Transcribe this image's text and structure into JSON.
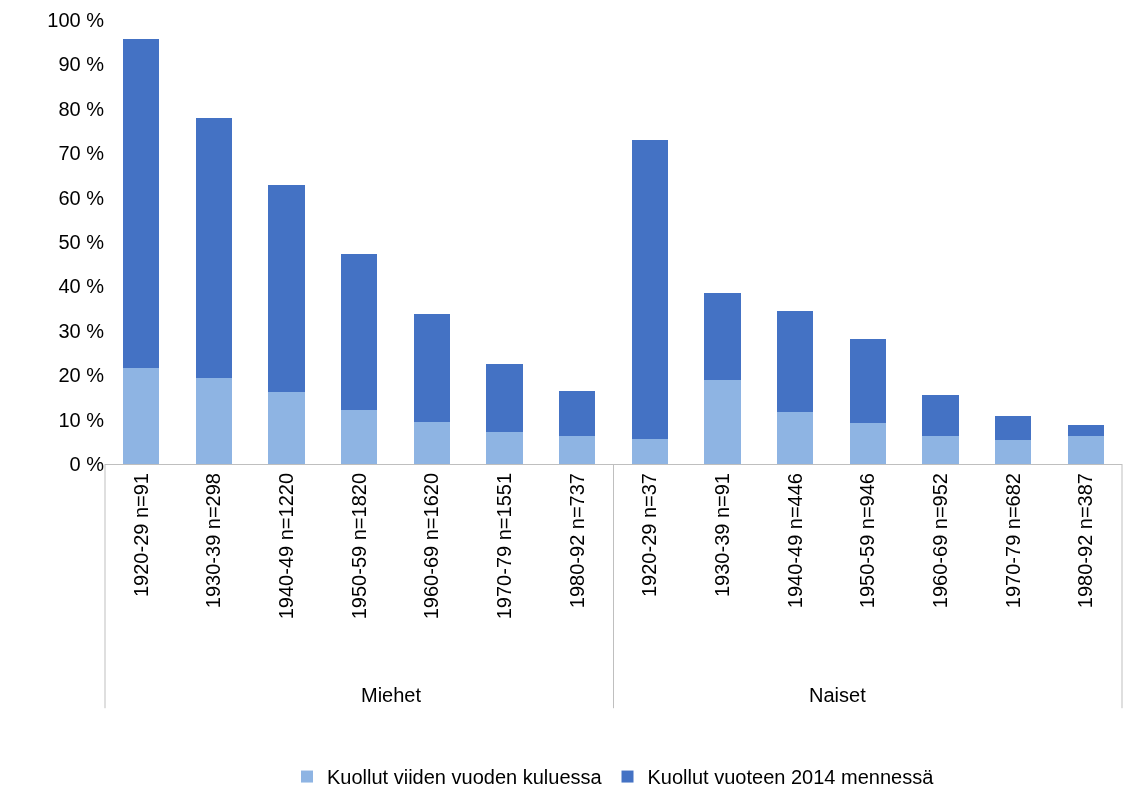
{
  "chart_data": {
    "type": "bar",
    "stacked": true,
    "categories": [
      "1920-29 n=91",
      "1930-39 n=298",
      "1940-49 n=1220",
      "1950-59 n=1820",
      "1960-69 n=1620",
      "1970-79 n=1551",
      "1980-92 n=737",
      "1920-29 n=37",
      "1930-39 n=91",
      "1940-49 n=446",
      "1950-59 n=946",
      "1960-69 n=952",
      "1970-79 n=682",
      "1980-92 n=387"
    ],
    "series": [
      {
        "name": "Kuollut viiden vuoden kuluessa",
        "color": "#8eb4e3",
        "values": [
          21.7,
          19.3,
          16.3,
          12.2,
          9.4,
          7.1,
          6.2,
          5.6,
          18.9,
          11.8,
          9.2,
          6.2,
          5.4,
          6.4
        ]
      },
      {
        "name": "Kuollut vuoteen 2014 mennessä",
        "color": "#4472c4",
        "values": [
          74.0,
          58.6,
          46.6,
          35.0,
          24.3,
          15.4,
          10.3,
          67.4,
          19.7,
          22.7,
          18.9,
          9.3,
          5.3,
          2.4
        ]
      }
    ],
    "annotations": [
      "Miehet",
      "Naiset"
    ],
    "ylim": [
      0,
      100
    ],
    "yticks": [
      {
        "value": 0,
        "label": "0 %"
      },
      {
        "value": 10,
        "label": "10 %"
      },
      {
        "value": 20,
        "label": "20 %"
      },
      {
        "value": 30,
        "label": "30 %"
      },
      {
        "value": 40,
        "label": "40 %"
      },
      {
        "value": 50,
        "label": "50 %"
      },
      {
        "value": 60,
        "label": "60 %"
      },
      {
        "value": 70,
        "label": "70 %"
      },
      {
        "value": 80,
        "label": "80 %"
      },
      {
        "value": 90,
        "label": "90 %"
      },
      {
        "value": 100,
        "label": "100 %"
      }
    ],
    "legend": "bottom"
  }
}
